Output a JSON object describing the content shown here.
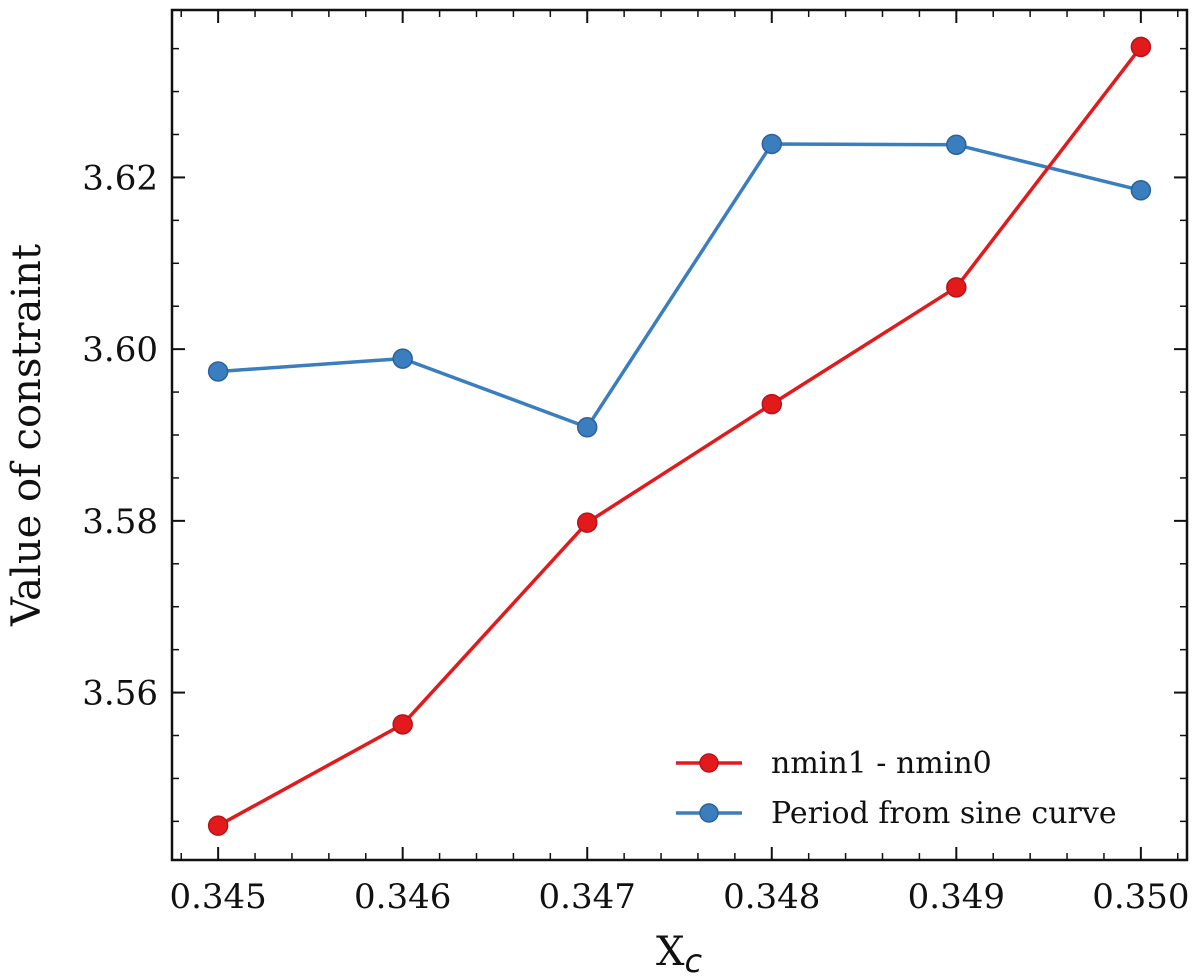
{
  "chart_data": {
    "type": "line",
    "xlabel": "X",
    "xlabel_subscript": "c",
    "ylabel": "Value of constraint",
    "x": [
      0.345,
      0.346,
      0.347,
      0.348,
      0.349,
      0.35
    ],
    "xlim": [
      0.34475,
      0.35025
    ],
    "ylim": [
      3.5405,
      3.6395
    ],
    "xticks": [
      "0.345",
      "0.346",
      "0.347",
      "0.348",
      "0.349",
      "0.350"
    ],
    "yticks": [
      "3.56",
      "3.58",
      "3.60",
      "3.62"
    ],
    "ytick_values": [
      3.56,
      3.58,
      3.6,
      3.62
    ],
    "y_minor_step": 0.005,
    "grid": false,
    "legend_position": "lower right",
    "series": [
      {
        "name": "nmin1 - nmin0",
        "color": "#e31a1c",
        "values": [
          3.5445,
          3.5563,
          3.5798,
          3.5936,
          3.6072,
          3.6352
        ]
      },
      {
        "name": "Period from sine curve",
        "color": "#3a7ebf",
        "values": [
          3.5974,
          3.5989,
          3.5909,
          3.6239,
          3.6238,
          3.6185
        ]
      }
    ]
  }
}
